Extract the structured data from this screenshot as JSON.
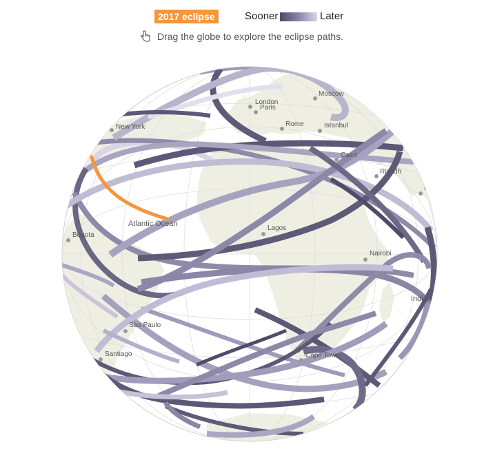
{
  "legend": {
    "badge": "2017 eclipse",
    "sooner": "Sooner",
    "later": "Later",
    "colors": {
      "current": "#f4963d",
      "sooner": "#4e4a66",
      "later": "#d8d4ea"
    }
  },
  "hint": {
    "text": "Drag the globe to explore the eclipse paths.",
    "icon": "hand-pointer-icon"
  },
  "map": {
    "land_color": "#efeee2",
    "labels": {
      "moscow": "Moscow",
      "london": "London",
      "paris": "Paris",
      "rome": "Rome",
      "istanbul": "Istanbul",
      "new_york": "New York",
      "cairo": "Cairo",
      "riyadh": "Riyadh",
      "mumbai": "Mumbai",
      "atlantic": "Atlantic Ocean",
      "lagos": "Lagos",
      "bogota": "Bogota",
      "nairobi": "Nairobi",
      "indian": "Indian Ocean",
      "sao_paulo": "Sao Paulo",
      "santiago": "Santiago",
      "cape_town": "Cape Town"
    }
  }
}
